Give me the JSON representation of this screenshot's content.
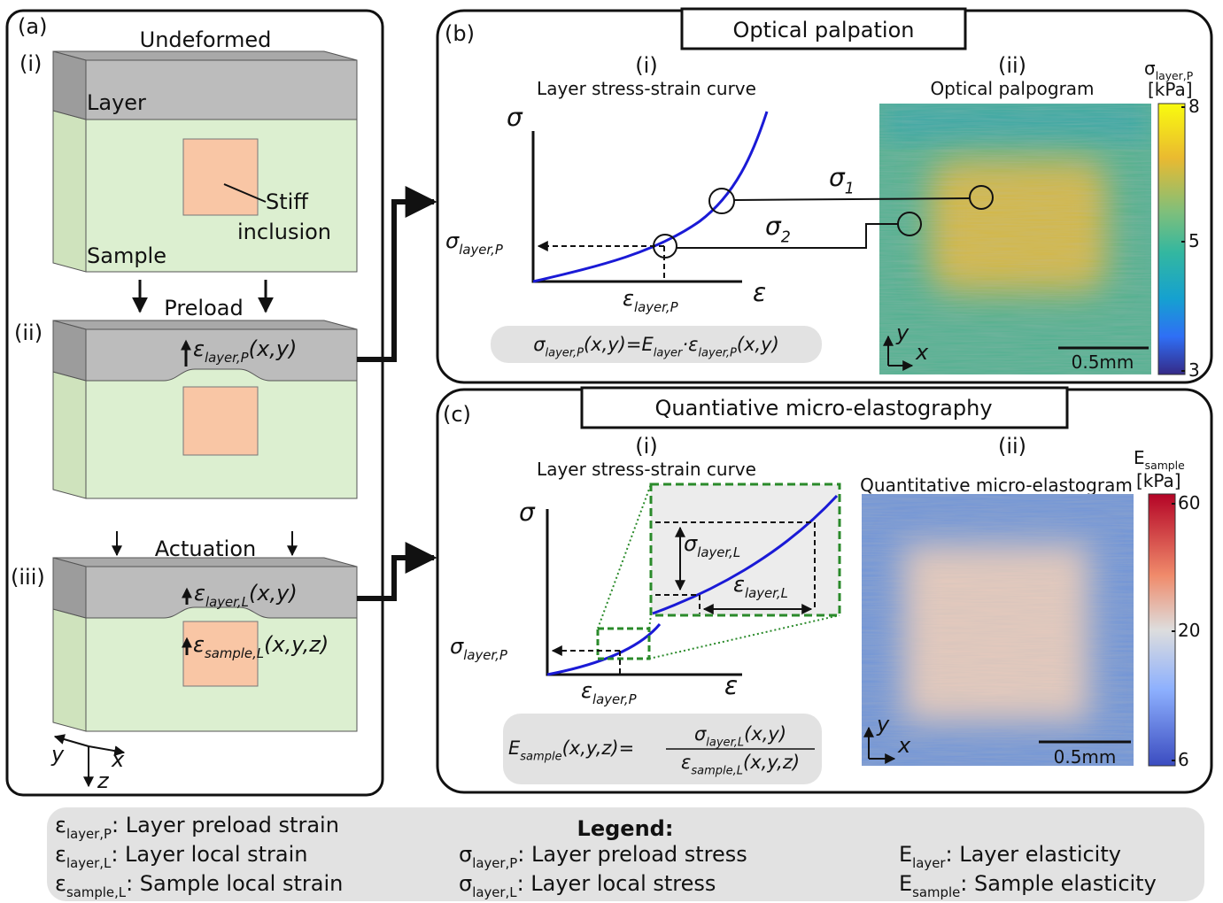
{
  "panel_a": {
    "label": "(a)",
    "undeformed": {
      "step": "(i)",
      "title": "Undeformed",
      "layer": "Layer",
      "sample": "Sample",
      "inclusion": [
        "Stiff",
        "inclusion"
      ]
    },
    "preload": {
      "step": "(ii)",
      "title": "Preload",
      "strain": [
        {
          "text": "ε"
        },
        {
          "sub": "layer,P"
        },
        {
          "text": "(x,y)"
        }
      ]
    },
    "actuation": {
      "step": "(iii)",
      "title": "Actuation",
      "layer_strain": [
        {
          "text": "ε"
        },
        {
          "sub": "layer,L"
        },
        {
          "text": "(x,y)"
        }
      ],
      "sample_strain": [
        {
          "text": "ε"
        },
        {
          "sub": "sample,L"
        },
        {
          "text": "(x,y,z)"
        }
      ]
    },
    "axes": [
      "y",
      "x",
      "z"
    ]
  },
  "panel_b": {
    "label": "(b)",
    "title": "Optical palpation",
    "curve": {
      "step": "(i)",
      "title": "Layer stress-strain curve",
      "y_axis": "σ",
      "x_axis": "ε",
      "stress": [
        {
          "text": "σ"
        },
        {
          "sub": "layer,P"
        }
      ],
      "strain": [
        {
          "text": "ε"
        },
        {
          "sub": "layer,P"
        }
      ],
      "formula": [
        {
          "text": "σ"
        },
        {
          "sub": "layer,P"
        },
        {
          "text": "(x,y)=E"
        },
        {
          "sub": "layer"
        },
        {
          "text": "·ε"
        },
        {
          "sub": "layer,P"
        },
        {
          "text": "(x,y)"
        }
      ]
    },
    "map": {
      "step": "(ii)",
      "title": "Optical palpogram",
      "points": [
        [
          {
            "text": "σ"
          },
          {
            "sub": "1"
          }
        ],
        [
          {
            "text": "σ"
          },
          {
            "sub": "2"
          }
        ]
      ],
      "colorbar": {
        "label": [
          {
            "text": "σ"
          },
          {
            "sub": "layer,P"
          }
        ],
        "unit": "[kPa]",
        "ticks": [
          8,
          5,
          3
        ]
      },
      "scale": "0.5mm",
      "axes": [
        "y",
        "x"
      ]
    }
  },
  "panel_c": {
    "label": "(c)",
    "title": "Quantiative micro-elastography",
    "curve": {
      "step": "(i)",
      "title": "Layer stress-strain curve",
      "y_axis": "σ",
      "x_axis": "ε",
      "stress": [
        {
          "text": "σ"
        },
        {
          "sub": "layer,P"
        }
      ],
      "strain": [
        {
          "text": "ε"
        },
        {
          "sub": "layer,P"
        }
      ],
      "local_stress": [
        {
          "text": "σ"
        },
        {
          "sub": "layer,L"
        }
      ],
      "local_strain": [
        {
          "text": "ε"
        },
        {
          "sub": "layer,L"
        }
      ],
      "formula": {
        "lhs": [
          {
            "text": "E"
          },
          {
            "sub": "sample"
          },
          {
            "text": "(x,y,z)="
          }
        ],
        "numerator": [
          {
            "text": "σ"
          },
          {
            "sub": "layer,L"
          },
          {
            "text": "(x,y)"
          }
        ],
        "denominator": [
          {
            "text": "ε"
          },
          {
            "sub": "sample,L"
          },
          {
            "text": "(x,y,z)"
          }
        ]
      }
    },
    "map": {
      "step": "(ii)",
      "title": "Quantitative micro-elastogram",
      "colorbar": {
        "label": [
          {
            "text": "E"
          },
          {
            "sub": "sample"
          }
        ],
        "unit": "[kPa]",
        "ticks": [
          60,
          20,
          6
        ]
      },
      "scale": "0.5mm",
      "axes": [
        "y",
        "x"
      ]
    }
  },
  "legend": {
    "title": "Legend:",
    "items": [
      {
        "term": [
          {
            "text": "ε"
          },
          {
            "sub": "layer,P"
          }
        ],
        "desc": ": Layer preload strain"
      },
      {
        "term": [
          {
            "text": "ε"
          },
          {
            "sub": "layer,L"
          }
        ],
        "desc": ": Layer local strain"
      },
      {
        "term": [
          {
            "text": "ε"
          },
          {
            "sub": "sample,L"
          }
        ],
        "desc": ": Sample local strain"
      },
      {
        "term": [
          {
            "text": "σ"
          },
          {
            "sub": "layer,P"
          }
        ],
        "desc": ": Layer preload stress"
      },
      {
        "term": [
          {
            "text": "σ"
          },
          {
            "sub": "layer,L"
          }
        ],
        "desc": ": Layer local stress"
      },
      {
        "term": [
          {
            "text": "E"
          },
          {
            "sub": "layer"
          }
        ],
        "desc": ": Layer elasticity"
      },
      {
        "term": [
          {
            "text": "E"
          },
          {
            "sub": "sample"
          }
        ],
        "desc": ": Sample elasticity"
      }
    ]
  }
}
